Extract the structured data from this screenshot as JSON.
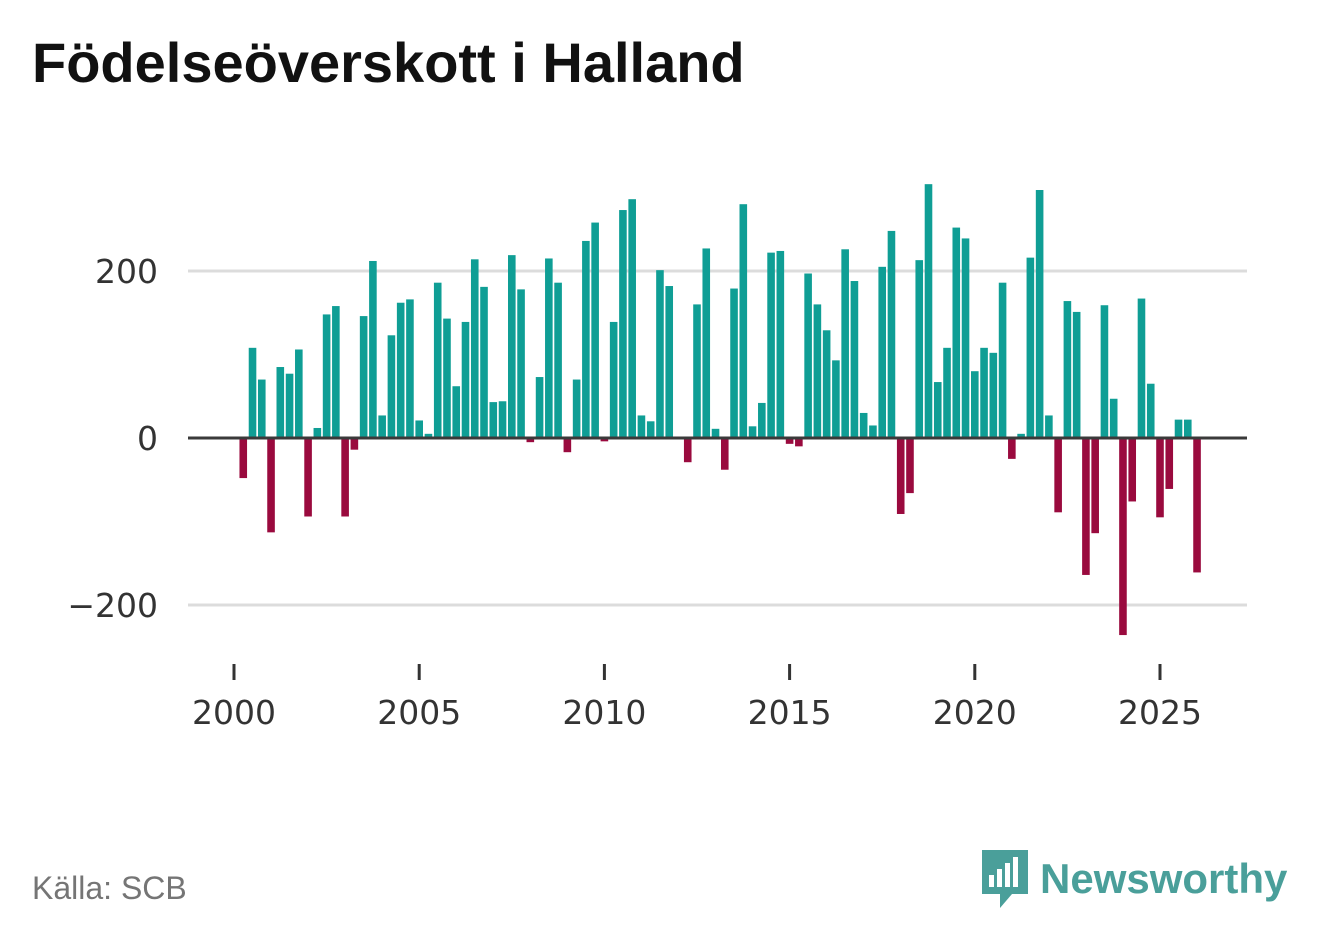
{
  "chart_data": {
    "type": "bar",
    "title": "Födelseöverskott i Halland",
    "xlabel": "",
    "ylabel": "",
    "ylim": [
      -270,
      310
    ],
    "y_ticks": [
      200,
      0,
      -200
    ],
    "y_tick_labels": [
      "200",
      "0",
      "−200"
    ],
    "x_range": [
      1999.5,
      2027.3
    ],
    "x_ticks": [
      2000,
      2005,
      2010,
      2015,
      2020,
      2025
    ],
    "x_tick_labels": [
      "2000",
      "2005",
      "2010",
      "2015",
      "2020",
      "2025"
    ],
    "grid": true,
    "frequency": "quarterly",
    "start_year": 2000,
    "positive_color": "#0f9e95",
    "negative_color": "#9a0a3e",
    "values": [
      -48,
      108,
      70,
      -113,
      85,
      77,
      106,
      -94,
      12,
      148,
      158,
      -94,
      -14,
      146,
      212,
      27,
      123,
      162,
      166,
      21,
      5,
      186,
      143,
      62,
      139,
      214,
      181,
      43,
      44,
      219,
      178,
      -5,
      73,
      215,
      186,
      -17,
      70,
      236,
      258,
      -4,
      139,
      273,
      286,
      27,
      20,
      201,
      182,
      0,
      -29,
      160,
      227,
      11,
      -38,
      179,
      280,
      14,
      42,
      222,
      224,
      -7,
      -10,
      197,
      160,
      129,
      93,
      226,
      188,
      30,
      15,
      205,
      248,
      -91,
      -66,
      213,
      304,
      67,
      108,
      252,
      239,
      80,
      108,
      102,
      186,
      -25,
      5,
      216,
      297,
      27,
      -89,
      164,
      151,
      -164,
      -114,
      159,
      47,
      -236,
      -76,
      167,
      65,
      -95,
      -61,
      22,
      22,
      -161
    ]
  },
  "footer": {
    "source": "Källa: SCB",
    "brand": "Newsworthy",
    "brand_color": "#4a9f9a"
  }
}
